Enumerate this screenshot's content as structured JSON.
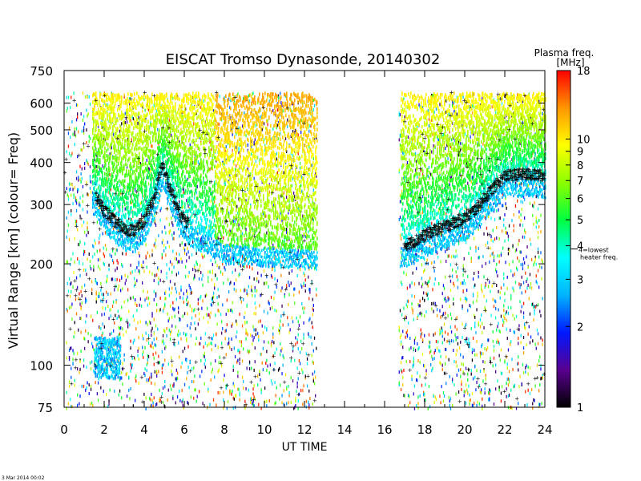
{
  "chart_data": {
    "type": "heatmap",
    "title": "EISCAT Tromso Dynasonde,   20140302",
    "xlabel": "UT TIME",
    "ylabel": "Virtual Range [km]    (colour= Freq)",
    "xlim": [
      0,
      24
    ],
    "ylim": [
      75,
      750
    ],
    "yscale": "log",
    "x_ticks": [
      "0",
      "2",
      "4",
      "6",
      "8",
      "10",
      "12",
      "14",
      "16",
      "18",
      "20",
      "22",
      "24"
    ],
    "x_tick_values": [
      0,
      2,
      4,
      6,
      8,
      10,
      12,
      14,
      16,
      18,
      20,
      22,
      24
    ],
    "y_ticks": [
      "75",
      "100",
      "200",
      "300",
      "400",
      "500",
      "600",
      "750"
    ],
    "y_tick_values": [
      75,
      100,
      200,
      300,
      400,
      500,
      600,
      750
    ],
    "data_gap": [
      12.6,
      16.7
    ],
    "colorbar": {
      "title": "Plasma freq.",
      "unit": "[MHz]",
      "scale": "log",
      "range": [
        1,
        18
      ],
      "ticks": [
        "1",
        "2",
        "3",
        "4",
        "5",
        "6",
        "7",
        "8",
        "9",
        "10",
        "18"
      ],
      "tick_values": [
        1,
        2,
        3,
        4,
        5,
        6,
        7,
        8,
        9,
        10,
        18
      ],
      "marker_label": "4=lowest heater freq.",
      "marker_value": 4,
      "colors": [
        "#000000",
        "#5a0090",
        "#0018ff",
        "#00b4ff",
        "#00ffff",
        "#00ff40",
        "#8cff00",
        "#ffff00",
        "#ff9600",
        "#ff0000"
      ]
    },
    "traces": [
      {
        "name": "",
        "x": [
          1.5,
          2.0,
          2.5,
          3.0,
          3.5,
          4.0,
          4.5,
          4.9,
          5.3,
          5.8,
          6.2
        ],
        "y": [
          320,
          285,
          265,
          250,
          248,
          265,
          310,
          390,
          330,
          275,
          260
        ]
      },
      {
        "name": "",
        "x": [
          17.0,
          17.5,
          18.0,
          18.5,
          19.0,
          19.5,
          20.0,
          20.5,
          21.0,
          21.5,
          22.0,
          23.0,
          24.0
        ],
        "y": [
          225,
          230,
          240,
          248,
          255,
          262,
          270,
          285,
          310,
          335,
          360,
          365,
          360
        ]
      }
    ]
  },
  "footer": {
    "timestamp": "3 Mar 2014 00:02"
  }
}
